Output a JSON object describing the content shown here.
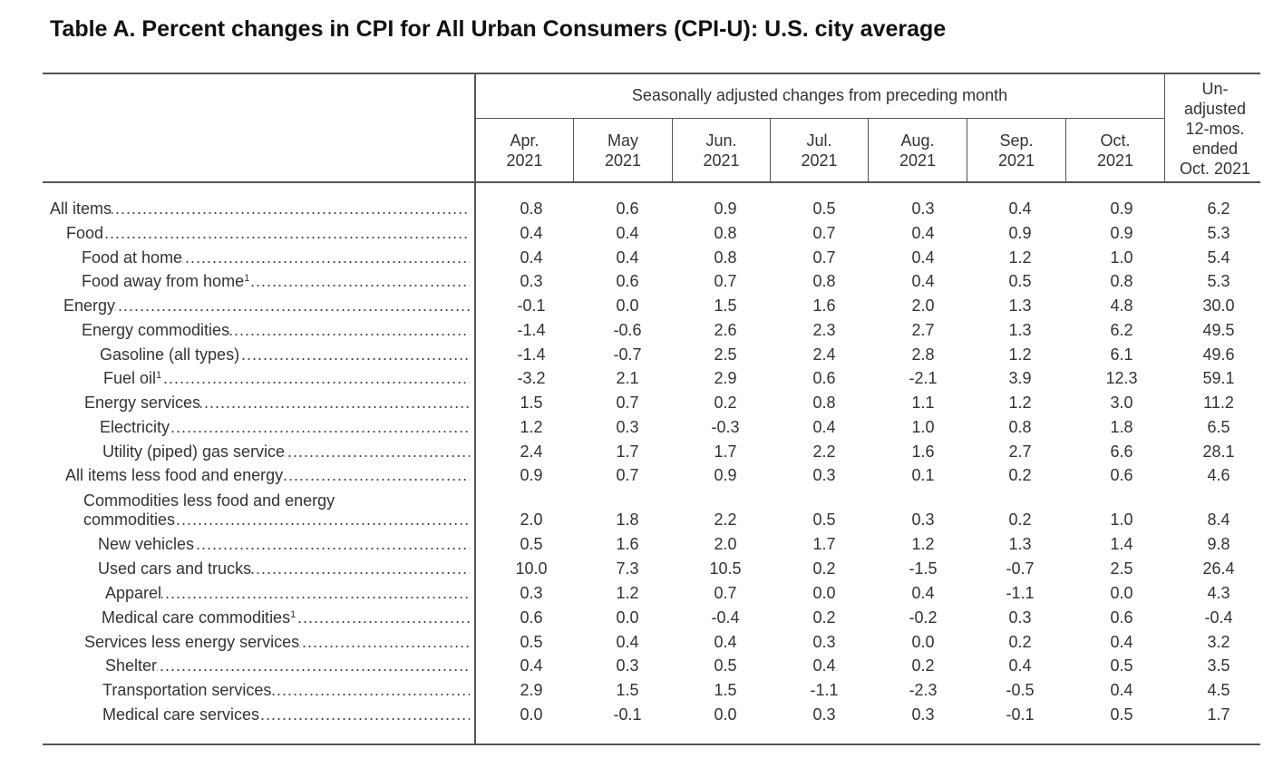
{
  "title": "Table A. Percent changes in CPI for All Urban Consumers (CPI-U): U.S. city average",
  "header": {
    "group_label": "Seasonally adjusted changes from preceding month",
    "months": [
      {
        "month": "Apr.",
        "year": "2021"
      },
      {
        "month": "May",
        "year": "2021"
      },
      {
        "month": "Jun.",
        "year": "2021"
      },
      {
        "month": "Jul.",
        "year": "2021"
      },
      {
        "month": "Aug.",
        "year": "2021"
      },
      {
        "month": "Sep.",
        "year": "2021"
      },
      {
        "month": "Oct.",
        "year": "2021"
      }
    ],
    "unadjusted": [
      "Un-",
      "adjusted",
      "12-mos.",
      "ended",
      "Oct. 2021"
    ]
  },
  "rows": [
    {
      "label": "All items",
      "values": [
        "0.8",
        "0.6",
        "0.9",
        "0.5",
        "0.3",
        "0.4",
        "0.9",
        "6.2"
      ]
    },
    {
      "label": "Food",
      "values": [
        "0.4",
        "0.4",
        "0.8",
        "0.7",
        "0.4",
        "0.9",
        "0.9",
        "5.3"
      ]
    },
    {
      "label": "Food at home",
      "values": [
        "0.4",
        "0.4",
        "0.8",
        "0.7",
        "0.4",
        "1.2",
        "1.0",
        "5.4"
      ]
    },
    {
      "label": "Food away from home",
      "footnote": "1",
      "values": [
        "0.3",
        "0.6",
        "0.7",
        "0.8",
        "0.4",
        "0.5",
        "0.8",
        "5.3"
      ]
    },
    {
      "label": "Energy",
      "values": [
        "-0.1",
        "0.0",
        "1.5",
        "1.6",
        "2.0",
        "1.3",
        "4.8",
        "30.0"
      ]
    },
    {
      "label": "Energy commodities",
      "values": [
        "-1.4",
        "-0.6",
        "2.6",
        "2.3",
        "2.7",
        "1.3",
        "6.2",
        "49.5"
      ]
    },
    {
      "label": "Gasoline  (all types)",
      "values": [
        "-1.4",
        "-0.7",
        "2.5",
        "2.4",
        "2.8",
        "1.2",
        "6.1",
        "49.6"
      ]
    },
    {
      "label": "Fuel oil",
      "footnote": "1",
      "values": [
        "-3.2",
        "2.1",
        "2.9",
        "0.6",
        "-2.1",
        "3.9",
        "12.3",
        "59.1"
      ]
    },
    {
      "label": "Energy services",
      "values": [
        "1.5",
        "0.7",
        "0.2",
        "0.8",
        "1.1",
        "1.2",
        "3.0",
        "11.2"
      ]
    },
    {
      "label": "Electricity",
      "values": [
        "1.2",
        "0.3",
        "-0.3",
        "0.4",
        "1.0",
        "0.8",
        "1.8",
        "6.5"
      ]
    },
    {
      "label": "Utility (piped) gas service",
      "values": [
        "2.4",
        "1.7",
        "1.7",
        "2.2",
        "1.6",
        "2.7",
        "6.6",
        "28.1"
      ]
    },
    {
      "label": "All items less food and energy",
      "values": [
        "0.9",
        "0.7",
        "0.9",
        "0.3",
        "0.1",
        "0.2",
        "0.6",
        "4.6"
      ]
    },
    {
      "label": "Commodities less food and energy",
      "label2": "commodities",
      "values": [
        "2.0",
        "1.8",
        "2.2",
        "0.5",
        "0.3",
        "0.2",
        "1.0",
        "8.4"
      ]
    },
    {
      "label": "New vehicles",
      "values": [
        "0.5",
        "1.6",
        "2.0",
        "1.7",
        "1.2",
        "1.3",
        "1.4",
        "9.8"
      ]
    },
    {
      "label": "Used cars and trucks",
      "values": [
        "10.0",
        "7.3",
        "10.5",
        "0.2",
        "-1.5",
        "-0.7",
        "2.5",
        "26.4"
      ]
    },
    {
      "label": "Apparel",
      "values": [
        "0.3",
        "1.2",
        "0.7",
        "0.0",
        "0.4",
        "-1.1",
        "0.0",
        "4.3"
      ]
    },
    {
      "label": "Medical care commodities",
      "footnote": "1",
      "values": [
        "0.6",
        "0.0",
        "-0.4",
        "0.2",
        "-0.2",
        "0.3",
        "0.6",
        "-0.4"
      ]
    },
    {
      "label": "Services less energy services",
      "values": [
        "0.5",
        "0.4",
        "0.4",
        "0.3",
        "0.0",
        "0.2",
        "0.4",
        "3.2"
      ]
    },
    {
      "label": "Shelter",
      "values": [
        "0.4",
        "0.3",
        "0.5",
        "0.4",
        "0.2",
        "0.4",
        "0.5",
        "3.5"
      ]
    },
    {
      "label": "Transportation services",
      "values": [
        "2.9",
        "1.5",
        "1.5",
        "-1.1",
        "-2.3",
        "-0.5",
        "0.4",
        "4.5"
      ]
    },
    {
      "label": "Medical care services",
      "values": [
        "0.0",
        "-0.1",
        "0.0",
        "0.3",
        "0.3",
        "-0.1",
        "0.5",
        "1.7"
      ]
    }
  ]
}
